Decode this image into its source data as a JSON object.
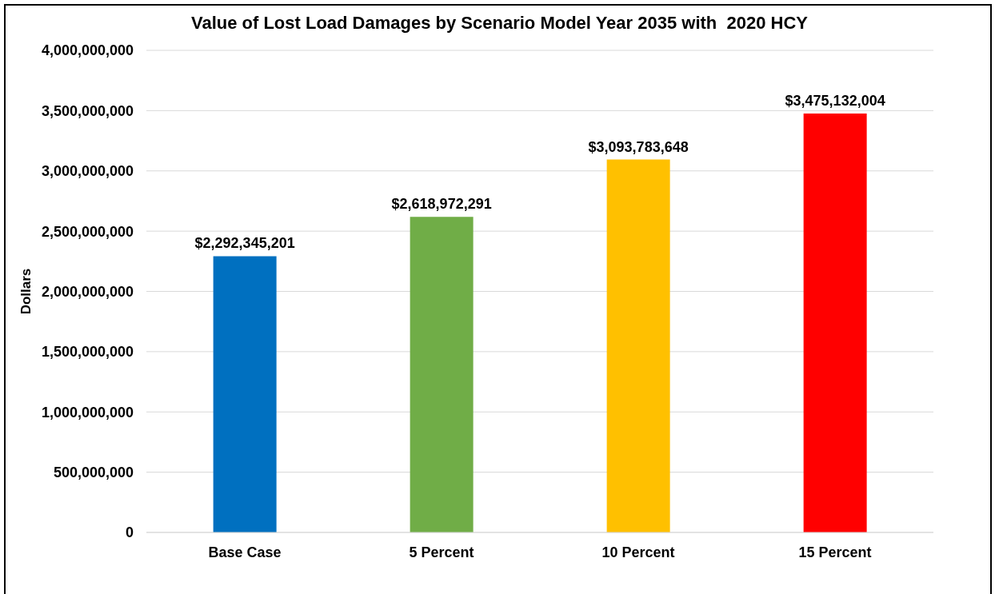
{
  "chart_data": {
    "type": "bar",
    "title": "Value of Lost Load Damages by Scenario Model Year 2035 with  2020 HCY",
    "ylabel": "Dollars",
    "categories": [
      "Base Case",
      "5 Percent",
      "10 Percent",
      "15 Percent"
    ],
    "values": [
      2292345201,
      2618972291,
      3093783648,
      3475132004
    ],
    "colors": [
      "#0070c0",
      "#70ad47",
      "#ffc000",
      "#ff0000"
    ],
    "value_labels": [
      "$2,292,345,201",
      "$2,618,972,291",
      "$3,093,783,648",
      "$3,475,132,004"
    ],
    "ylim": [
      0,
      4000000000
    ],
    "yticks": [
      0,
      {
        "value": 500000000,
        "label": "500,000,000"
      },
      {
        "value": 1000000000,
        "label": "1,000,000,000"
      },
      {
        "value": 1500000000,
        "label": "1,500,000,000"
      },
      {
        "value": 2000000000,
        "label": "2,000,000,000"
      },
      {
        "value": 2500000000,
        "label": "2,500,000,000"
      },
      {
        "value": 3000000000,
        "label": "3,000,000,000"
      },
      {
        "value": 3500000000,
        "label": "3,500,000,000"
      },
      {
        "value": 4000000000,
        "label": "4,000,000,000"
      }
    ],
    "grid": "y"
  }
}
